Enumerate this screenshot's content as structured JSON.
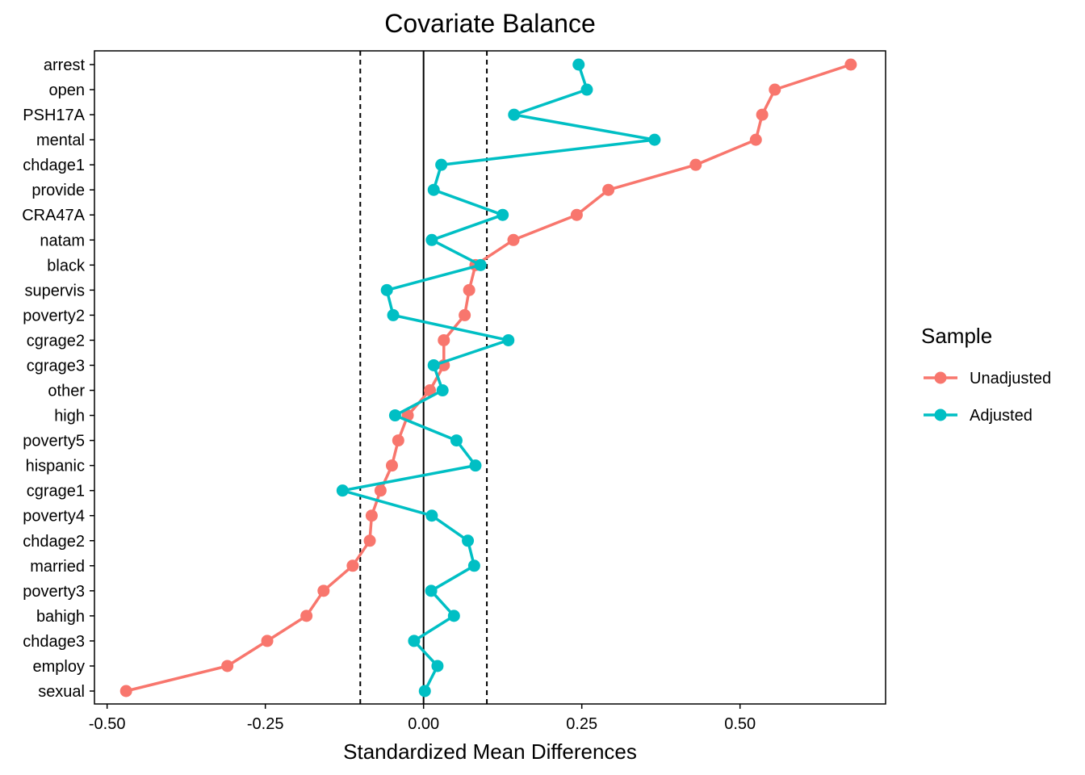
{
  "chart_data": {
    "type": "scatter",
    "title": "Covariate Balance",
    "xlabel": "Standardized Mean Differences",
    "ylabel": "",
    "xlim": [
      -0.52,
      0.73
    ],
    "x_ticks": [
      -0.5,
      -0.25,
      0.0,
      0.25,
      0.5
    ],
    "x_tick_labels": [
      "-0.50",
      "-0.25",
      "0.00",
      "0.25",
      "0.50"
    ],
    "threshold_lines": [
      -0.1,
      0.1
    ],
    "zero_line": 0,
    "grid": false,
    "legend_position": "right",
    "legend_title": "Sample",
    "categories": [
      "arrest",
      "open",
      "PSH17A",
      "mental",
      "chdage1",
      "provide",
      "CRA47A",
      "natam",
      "black",
      "supervis",
      "poverty2",
      "cgrage2",
      "cgrage3",
      "other",
      "high",
      "poverty5",
      "hispanic",
      "cgrage1",
      "poverty4",
      "chdage2",
      "married",
      "poverty3",
      "bahigh",
      "chdage3",
      "employ",
      "sexual"
    ],
    "series": [
      {
        "name": "Unadjusted",
        "color": "#F8766D",
        "values": [
          0.675,
          0.555,
          0.535,
          0.525,
          0.43,
          0.292,
          0.242,
          0.142,
          0.082,
          0.072,
          0.065,
          0.032,
          0.032,
          0.01,
          -0.025,
          -0.04,
          -0.05,
          -0.068,
          -0.082,
          -0.085,
          -0.112,
          -0.158,
          -0.185,
          -0.247,
          -0.31,
          -0.47
        ]
      },
      {
        "name": "Adjusted",
        "color": "#00BFC4",
        "values": [
          0.245,
          0.258,
          0.143,
          0.365,
          0.028,
          0.016,
          0.125,
          0.013,
          0.09,
          -0.058,
          -0.048,
          0.134,
          0.016,
          0.03,
          -0.045,
          0.052,
          0.082,
          -0.128,
          0.013,
          0.07,
          0.08,
          0.012,
          0.048,
          -0.015,
          0.022,
          0.002
        ]
      }
    ]
  }
}
